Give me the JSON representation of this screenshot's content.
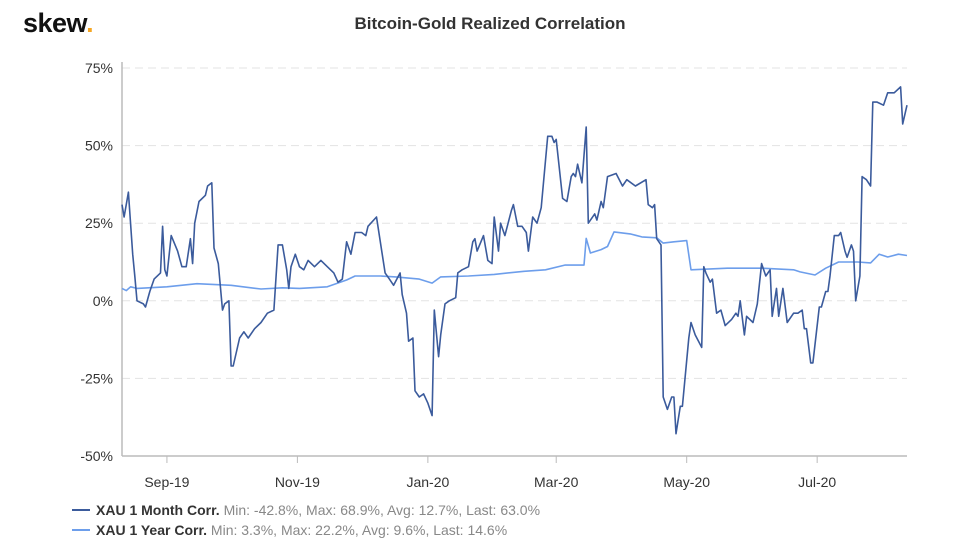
{
  "logo": {
    "text": "skew",
    "dot": "."
  },
  "chart_data": {
    "type": "line",
    "title": "Bitcoin-Gold Realized Correlation",
    "xlabel": "",
    "ylabel": "",
    "x_domain": [
      "2019-08-11",
      "2020-08-12"
    ],
    "x_ticks": [
      {
        "date": "2019-09-01",
        "label": "Sep-19"
      },
      {
        "date": "2019-11-01",
        "label": "Nov-19"
      },
      {
        "date": "2020-01-01",
        "label": "Jan-20"
      },
      {
        "date": "2020-03-01",
        "label": "Mar-20"
      },
      {
        "date": "2020-05-01",
        "label": "May-20"
      },
      {
        "date": "2020-07-01",
        "label": "Jul-20"
      }
    ],
    "ylim": [
      -50,
      75
    ],
    "y_ticks": [
      {
        "value": 75,
        "label": "75%"
      },
      {
        "value": 50,
        "label": "50%"
      },
      {
        "value": 25,
        "label": "25%"
      },
      {
        "value": 0,
        "label": "0%"
      },
      {
        "value": -25,
        "label": "-25%"
      },
      {
        "value": -50,
        "label": "-50%"
      }
    ],
    "grid": true,
    "legend_position": "bottom-left",
    "series": [
      {
        "name": "XAU 1 Month Corr.",
        "stats": "Min: -42.8%, Max: 68.9%, Avg: 12.7%, Last: 63.0%",
        "color": "#3b5b9c",
        "points": [
          [
            "2019-08-11",
            31
          ],
          [
            "2019-08-12",
            27
          ],
          [
            "2019-08-14",
            35
          ],
          [
            "2019-08-16",
            15
          ],
          [
            "2019-08-17",
            8
          ],
          [
            "2019-08-18",
            0
          ],
          [
            "2019-08-21",
            -1
          ],
          [
            "2019-08-22",
            -2
          ],
          [
            "2019-08-24",
            3
          ],
          [
            "2019-08-26",
            7
          ],
          [
            "2019-08-29",
            9
          ],
          [
            "2019-08-30",
            24
          ],
          [
            "2019-08-31",
            10
          ],
          [
            "2019-09-01",
            8
          ],
          [
            "2019-09-03",
            21
          ],
          [
            "2019-09-06",
            16
          ],
          [
            "2019-09-08",
            11
          ],
          [
            "2019-09-10",
            11
          ],
          [
            "2019-09-12",
            20
          ],
          [
            "2019-09-13",
            12
          ],
          [
            "2019-09-14",
            25
          ],
          [
            "2019-09-16",
            32
          ],
          [
            "2019-09-19",
            34
          ],
          [
            "2019-09-20",
            37
          ],
          [
            "2019-09-22",
            38
          ],
          [
            "2019-09-23",
            17
          ],
          [
            "2019-09-25",
            12
          ],
          [
            "2019-09-27",
            -3
          ],
          [
            "2019-09-28",
            -1
          ],
          [
            "2019-09-30",
            0
          ],
          [
            "2019-10-01",
            -21
          ],
          [
            "2019-10-02",
            -21
          ],
          [
            "2019-10-05",
            -12
          ],
          [
            "2019-10-07",
            -10
          ],
          [
            "2019-10-09",
            -12
          ],
          [
            "2019-10-12",
            -9
          ],
          [
            "2019-10-15",
            -7
          ],
          [
            "2019-10-18",
            -4
          ],
          [
            "2019-10-21",
            -3
          ],
          [
            "2019-10-23",
            18
          ],
          [
            "2019-10-25",
            18
          ],
          [
            "2019-10-27",
            10
          ],
          [
            "2019-10-28",
            4
          ],
          [
            "2019-10-29",
            11
          ],
          [
            "2019-10-31",
            15
          ],
          [
            "2019-11-02",
            11
          ],
          [
            "2019-11-04",
            10
          ],
          [
            "2019-11-06",
            13
          ],
          [
            "2019-11-09",
            11
          ],
          [
            "2019-11-12",
            13
          ],
          [
            "2019-11-15",
            11
          ],
          [
            "2019-11-18",
            9
          ],
          [
            "2019-11-20",
            6
          ],
          [
            "2019-11-22",
            7
          ],
          [
            "2019-11-24",
            19
          ],
          [
            "2019-11-26",
            15
          ],
          [
            "2019-11-28",
            22
          ],
          [
            "2019-12-01",
            22
          ],
          [
            "2019-12-03",
            21
          ],
          [
            "2019-12-04",
            24
          ],
          [
            "2019-12-08",
            27
          ],
          [
            "2019-12-12",
            9
          ],
          [
            "2019-12-14",
            7
          ],
          [
            "2019-12-16",
            5
          ],
          [
            "2019-12-19",
            9
          ],
          [
            "2019-12-20",
            2
          ],
          [
            "2019-12-22",
            -4
          ],
          [
            "2019-12-23",
            -13
          ],
          [
            "2019-12-25",
            -12
          ],
          [
            "2019-12-26",
            -29
          ],
          [
            "2019-12-28",
            -31
          ],
          [
            "2019-12-30",
            -30
          ],
          [
            "2020-01-01",
            -33
          ],
          [
            "2020-01-03",
            -37
          ],
          [
            "2020-01-04",
            -3
          ],
          [
            "2020-01-06",
            -18
          ],
          [
            "2020-01-07",
            -11
          ],
          [
            "2020-01-09",
            -1
          ],
          [
            "2020-01-11",
            0
          ],
          [
            "2020-01-14",
            1
          ],
          [
            "2020-01-15",
            9
          ],
          [
            "2020-01-17",
            10
          ],
          [
            "2020-01-20",
            11
          ],
          [
            "2020-01-22",
            19
          ],
          [
            "2020-01-23",
            20
          ],
          [
            "2020-01-24",
            16
          ],
          [
            "2020-01-27",
            21
          ],
          [
            "2020-01-29",
            13
          ],
          [
            "2020-01-31",
            12
          ],
          [
            "2020-02-01",
            27
          ],
          [
            "2020-02-03",
            16
          ],
          [
            "2020-02-04",
            25
          ],
          [
            "2020-02-06",
            21
          ],
          [
            "2020-02-09",
            29
          ],
          [
            "2020-02-10",
            31
          ],
          [
            "2020-02-12",
            24
          ],
          [
            "2020-02-14",
            24
          ],
          [
            "2020-02-16",
            22
          ],
          [
            "2020-02-17",
            16
          ],
          [
            "2020-02-19",
            27
          ],
          [
            "2020-02-21",
            25
          ],
          [
            "2020-02-23",
            30
          ],
          [
            "2020-02-26",
            53
          ],
          [
            "2020-02-28",
            53
          ],
          [
            "2020-02-29",
            51
          ],
          [
            "2020-03-01",
            52
          ],
          [
            "2020-03-04",
            33
          ],
          [
            "2020-03-06",
            32
          ],
          [
            "2020-03-08",
            40
          ],
          [
            "2020-03-09",
            41
          ],
          [
            "2020-03-10",
            40
          ],
          [
            "2020-03-11",
            44
          ],
          [
            "2020-03-13",
            38
          ],
          [
            "2020-03-15",
            56
          ],
          [
            "2020-03-16",
            25
          ],
          [
            "2020-03-19",
            28
          ],
          [
            "2020-03-20",
            26
          ],
          [
            "2020-03-22",
            32
          ],
          [
            "2020-03-23",
            30
          ],
          [
            "2020-03-25",
            40
          ],
          [
            "2020-03-29",
            41
          ],
          [
            "2020-04-01",
            37
          ],
          [
            "2020-04-03",
            39
          ],
          [
            "2020-04-07",
            37
          ],
          [
            "2020-04-12",
            39
          ],
          [
            "2020-04-13",
            31
          ],
          [
            "2020-04-15",
            30
          ],
          [
            "2020-04-16",
            31
          ],
          [
            "2020-04-17",
            20
          ],
          [
            "2020-04-19",
            18
          ],
          [
            "2020-04-20",
            -31
          ],
          [
            "2020-04-22",
            -35
          ],
          [
            "2020-04-24",
            -31
          ],
          [
            "2020-04-25",
            -31
          ],
          [
            "2020-04-26",
            -42.8
          ],
          [
            "2020-04-28",
            -34
          ],
          [
            "2020-04-29",
            -34
          ],
          [
            "2020-05-02",
            -12
          ],
          [
            "2020-05-03",
            -7
          ],
          [
            "2020-05-05",
            -11
          ],
          [
            "2020-05-08",
            -15
          ],
          [
            "2020-05-09",
            11
          ],
          [
            "2020-05-10",
            9
          ],
          [
            "2020-05-12",
            6
          ],
          [
            "2020-05-13",
            7
          ],
          [
            "2020-05-15",
            -4
          ],
          [
            "2020-05-17",
            -3
          ],
          [
            "2020-05-19",
            -8
          ],
          [
            "2020-05-22",
            -6
          ],
          [
            "2020-05-24",
            -4
          ],
          [
            "2020-05-25",
            -5
          ],
          [
            "2020-05-26",
            0
          ],
          [
            "2020-05-28",
            -11
          ],
          [
            "2020-05-29",
            -5
          ],
          [
            "2020-06-01",
            -7
          ],
          [
            "2020-06-03",
            -1
          ],
          [
            "2020-06-05",
            12
          ],
          [
            "2020-06-07",
            8
          ],
          [
            "2020-06-09",
            10
          ],
          [
            "2020-06-10",
            -5
          ],
          [
            "2020-06-12",
            4
          ],
          [
            "2020-06-13",
            -5
          ],
          [
            "2020-06-15",
            4
          ],
          [
            "2020-06-17",
            -7
          ],
          [
            "2020-06-20",
            -4
          ],
          [
            "2020-06-22",
            -4
          ],
          [
            "2020-06-24",
            -3
          ],
          [
            "2020-06-25",
            -9
          ],
          [
            "2020-06-26",
            -9
          ],
          [
            "2020-06-28",
            -20
          ],
          [
            "2020-06-29",
            -20
          ],
          [
            "2020-07-02",
            -2
          ],
          [
            "2020-07-03",
            -2
          ],
          [
            "2020-07-05",
            3
          ],
          [
            "2020-07-06",
            3
          ],
          [
            "2020-07-07",
            8
          ],
          [
            "2020-07-09",
            21
          ],
          [
            "2020-07-11",
            21
          ],
          [
            "2020-07-12",
            22
          ],
          [
            "2020-07-14",
            16
          ],
          [
            "2020-07-15",
            14
          ],
          [
            "2020-07-17",
            18
          ],
          [
            "2020-07-18",
            16
          ],
          [
            "2020-07-19",
            0
          ],
          [
            "2020-07-21",
            8
          ],
          [
            "2020-07-22",
            40
          ],
          [
            "2020-07-24",
            39
          ],
          [
            "2020-07-26",
            37
          ],
          [
            "2020-07-27",
            64
          ],
          [
            "2020-07-29",
            64
          ],
          [
            "2020-08-01",
            63
          ],
          [
            "2020-08-03",
            67
          ],
          [
            "2020-08-06",
            67
          ],
          [
            "2020-08-09",
            68.9
          ],
          [
            "2020-08-10",
            57
          ],
          [
            "2020-08-12",
            63
          ]
        ]
      },
      {
        "name": "XAU 1 Year Corr.",
        "stats": "Min: 3.3%, Max: 22.2%, Avg: 9.6%, Last: 14.6%",
        "color": "#6d9eeb",
        "points": [
          [
            "2019-08-11",
            4
          ],
          [
            "2019-08-13",
            3.3
          ],
          [
            "2019-08-15",
            4.5
          ],
          [
            "2019-08-18",
            4
          ],
          [
            "2019-09-01",
            4.5
          ],
          [
            "2019-09-15",
            5.5
          ],
          [
            "2019-10-01",
            5
          ],
          [
            "2019-10-15",
            3.8
          ],
          [
            "2019-10-25",
            4.2
          ],
          [
            "2019-11-02",
            4
          ],
          [
            "2019-11-15",
            4.5
          ],
          [
            "2019-11-24",
            6.7
          ],
          [
            "2019-11-28",
            8
          ],
          [
            "2019-12-10",
            8
          ],
          [
            "2019-12-17",
            7.7
          ],
          [
            "2019-12-28",
            7
          ],
          [
            "2020-01-03",
            5.7
          ],
          [
            "2020-01-07",
            7.7
          ],
          [
            "2020-01-20",
            8
          ],
          [
            "2020-02-01",
            8.5
          ],
          [
            "2020-02-15",
            9.5
          ],
          [
            "2020-02-25",
            10
          ],
          [
            "2020-03-05",
            11.5
          ],
          [
            "2020-03-14",
            11.5
          ],
          [
            "2020-03-15",
            20.1
          ],
          [
            "2020-03-17",
            15.4
          ],
          [
            "2020-03-22",
            16.5
          ],
          [
            "2020-03-25",
            17.5
          ],
          [
            "2020-03-28",
            22.2
          ],
          [
            "2020-04-05",
            21.5
          ],
          [
            "2020-04-10",
            20.6
          ],
          [
            "2020-04-17",
            20.3
          ],
          [
            "2020-04-20",
            18.6
          ],
          [
            "2020-04-25",
            19
          ],
          [
            "2020-05-01",
            19.4
          ],
          [
            "2020-05-03",
            10
          ],
          [
            "2020-05-20",
            10.5
          ],
          [
            "2020-06-05",
            10.5
          ],
          [
            "2020-06-20",
            10
          ],
          [
            "2020-06-23",
            9.3
          ],
          [
            "2020-06-30",
            8.3
          ],
          [
            "2020-07-05",
            10.5
          ],
          [
            "2020-07-11",
            12.5
          ],
          [
            "2020-07-20",
            12.5
          ],
          [
            "2020-07-26",
            12.2
          ],
          [
            "2020-07-30",
            15
          ],
          [
            "2020-08-03",
            14.1
          ],
          [
            "2020-08-08",
            15
          ],
          [
            "2020-08-12",
            14.6
          ]
        ]
      }
    ]
  }
}
